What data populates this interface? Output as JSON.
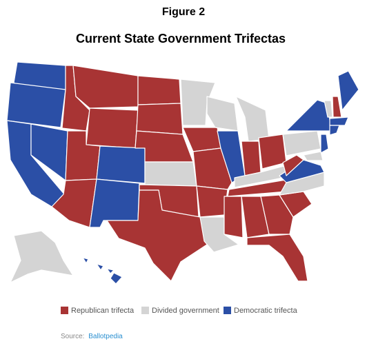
{
  "figure_label": "Figure 2",
  "title": "Current State Government Trifectas",
  "legend": {
    "items": [
      {
        "label": "Republican trifecta",
        "color": "#a83434"
      },
      {
        "label": "Divided government",
        "color": "#d4d4d4"
      },
      {
        "label": "Democratic trifecta",
        "color": "#2b4fa6"
      }
    ]
  },
  "source": {
    "prefix": "Source:",
    "link": "Ballotpedia"
  }
}
